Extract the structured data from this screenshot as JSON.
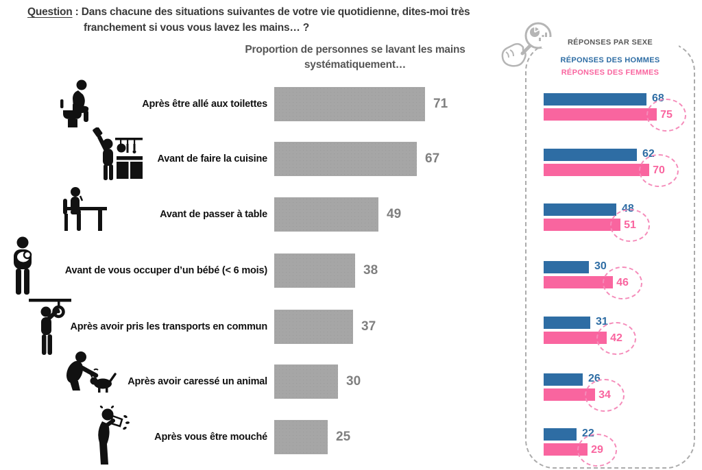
{
  "question": {
    "label": "Question",
    "separator": " : ",
    "line1": "Dans chacune des situations suivantes de votre vie quotidienne, dites-moi très",
    "line2": "franchement si vous vous lavez les mains… ?"
  },
  "title_lines": [
    "Proportion de personnes se lavant les mains",
    "systématiquement…"
  ],
  "panel": {
    "header": "RÉPONSES PAR SEXE",
    "men_label": "RÉPONSES DES HOMMES",
    "women_label": "RÉPONSES DES FEMMES"
  },
  "chart_data": {
    "type": "bar",
    "orientation": "horizontal",
    "title": "Proportion de personnes se lavant les mains systématiquement…",
    "categories": [
      "Après être allé aux toilettes",
      "Avant de faire la cuisine",
      "Avant de passer à table",
      "Avant de vous occuper d’un bébé (< 6 mois)",
      "Après avoir pris les transports en commun",
      "Après avoir caressé un animal",
      "Après vous être mouché"
    ],
    "values": [
      71,
      67,
      49,
      38,
      37,
      30,
      25
    ],
    "series": [
      {
        "name": "RÉPONSES DES HOMMES",
        "values": [
          68,
          62,
          48,
          30,
          31,
          26,
          22
        ],
        "color": "#2e6da4"
      },
      {
        "name": "RÉPONSES DES FEMMES",
        "values": [
          75,
          70,
          51,
          46,
          42,
          34,
          29
        ],
        "color": "#f9659f"
      }
    ],
    "xlim": [
      0,
      100
    ],
    "grid": false,
    "legend_position": "top-right-panel"
  },
  "icons": [
    "toilet-icon",
    "cooking-icon",
    "table-seat-icon",
    "baby-care-icon",
    "public-transport-icon",
    "pet-animal-icon",
    "nose-blowing-icon"
  ],
  "colors": {
    "bar_gray": "#a6a6a6",
    "value_gray": "#7f7f7f",
    "men_blue": "#2e6da4",
    "women_pink": "#f9659f",
    "panel_header_gray": "#595959",
    "text_dark": "#3a3a3a"
  }
}
